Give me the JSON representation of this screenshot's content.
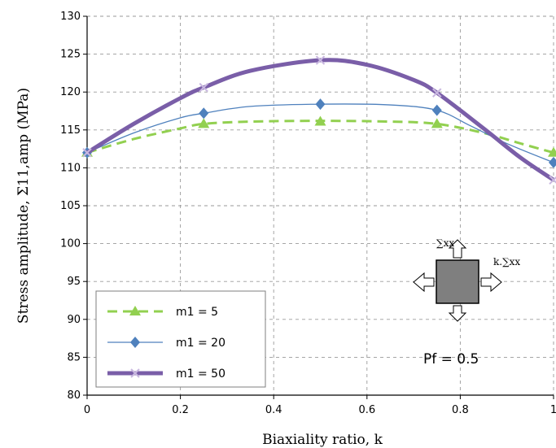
{
  "chart_data": {
    "type": "line",
    "title": "",
    "xlabel": "Biaxiality ratio, k",
    "ylabel": "Stress amplitude, Σ11,amp (MPa)",
    "xlim": [
      0,
      1
    ],
    "ylim": [
      80,
      130
    ],
    "xticks": [
      "0",
      "0.2",
      "0.4",
      "0.6",
      "0.8",
      "1"
    ],
    "yticks": [
      "80",
      "85",
      "90",
      "95",
      "100",
      "105",
      "110",
      "115",
      "120",
      "125",
      "130"
    ],
    "grid": true,
    "legend_position": "bottom-left",
    "series": [
      {
        "name": "m1 = 5",
        "color": "#92d050",
        "marker": "triangle",
        "style": "dashed",
        "x": [
          0,
          0.25,
          0.5,
          0.75,
          1
        ],
        "y": [
          112,
          115.8,
          116.1,
          115.8,
          112
        ],
        "curve": [
          [
            0,
            112
          ],
          [
            0.1,
            113.8
          ],
          [
            0.2,
            115.2
          ],
          [
            0.25,
            115.8
          ],
          [
            0.35,
            116.1
          ],
          [
            0.5,
            116.2
          ],
          [
            0.65,
            116.1
          ],
          [
            0.75,
            115.8
          ],
          [
            0.85,
            114.6
          ],
          [
            0.93,
            113.2
          ],
          [
            1,
            112
          ]
        ]
      },
      {
        "name": "m1 = 20",
        "color": "#4f81bd",
        "marker": "diamond",
        "style": "solid",
        "x": [
          0,
          0.25,
          0.5,
          0.75,
          1
        ],
        "y": [
          112,
          117.2,
          118.4,
          117.6,
          110.7
        ],
        "curve": [
          [
            0,
            112
          ],
          [
            0.1,
            114.6
          ],
          [
            0.2,
            116.6
          ],
          [
            0.25,
            117.2
          ],
          [
            0.35,
            118.1
          ],
          [
            0.5,
            118.4
          ],
          [
            0.65,
            118.3
          ],
          [
            0.75,
            117.6
          ],
          [
            0.82,
            115.6
          ],
          [
            0.9,
            113.2
          ],
          [
            1,
            110.7
          ]
        ]
      },
      {
        "name": "m1 = 50",
        "color": "#7a5ea8",
        "marker": "x",
        "style": "solid-thick",
        "x": [
          0,
          0.25,
          0.5,
          0.75,
          1
        ],
        "y": [
          112,
          120.6,
          124.2,
          119.9,
          108.4
        ],
        "curve": [
          [
            0,
            112
          ],
          [
            0.1,
            115.8
          ],
          [
            0.2,
            119.2
          ],
          [
            0.25,
            120.6
          ],
          [
            0.35,
            122.8
          ],
          [
            0.5,
            124.2
          ],
          [
            0.6,
            123.6
          ],
          [
            0.7,
            121.6
          ],
          [
            0.75,
            119.9
          ],
          [
            0.85,
            115.2
          ],
          [
            0.93,
            111.3
          ],
          [
            1,
            108.4
          ]
        ]
      }
    ],
    "annotations": {
      "pf_label": "Pf = 0.5",
      "sigma_top": "∑xx",
      "sigma_right": "k.∑xx"
    }
  }
}
